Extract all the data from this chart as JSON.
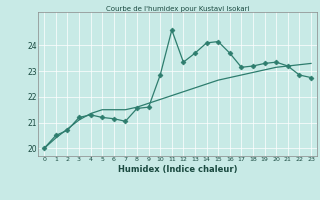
{
  "title": "Courbe de l'humidex pour Kustavi Isokari",
  "xlabel": "Humidex (Indice chaleur)",
  "background_color": "#c8eae6",
  "grid_color": "#aad8d3",
  "line_color": "#2e7d6e",
  "xlim": [
    -0.5,
    23.5
  ],
  "ylim": [
    19.7,
    25.3
  ],
  "yticks": [
    20,
    21,
    22,
    23,
    24
  ],
  "xticks": [
    0,
    1,
    2,
    3,
    4,
    5,
    6,
    7,
    8,
    9,
    10,
    11,
    12,
    13,
    14,
    15,
    16,
    17,
    18,
    19,
    20,
    21,
    22,
    23
  ],
  "series1_x": [
    0,
    1,
    2,
    3,
    4,
    5,
    6,
    7,
    8,
    9,
    10,
    11,
    12,
    13,
    14,
    15,
    16,
    17,
    18,
    19,
    20,
    21,
    22,
    23
  ],
  "series1_y": [
    20.0,
    20.5,
    20.7,
    21.2,
    21.3,
    21.2,
    21.15,
    21.05,
    21.55,
    21.6,
    22.85,
    24.6,
    23.35,
    23.7,
    24.1,
    24.15,
    23.7,
    23.15,
    23.2,
    23.3,
    23.35,
    23.2,
    22.85,
    22.75
  ],
  "series2_x": [
    0,
    1,
    2,
    3,
    4,
    5,
    6,
    7,
    8,
    9,
    10,
    11,
    12,
    13,
    14,
    15,
    16,
    17,
    18,
    19,
    20,
    21,
    22,
    23
  ],
  "series2_y": [
    20.0,
    20.4,
    20.75,
    21.1,
    21.35,
    21.5,
    21.5,
    21.5,
    21.6,
    21.75,
    21.9,
    22.05,
    22.2,
    22.35,
    22.5,
    22.65,
    22.75,
    22.85,
    22.95,
    23.05,
    23.15,
    23.2,
    23.25,
    23.3
  ]
}
